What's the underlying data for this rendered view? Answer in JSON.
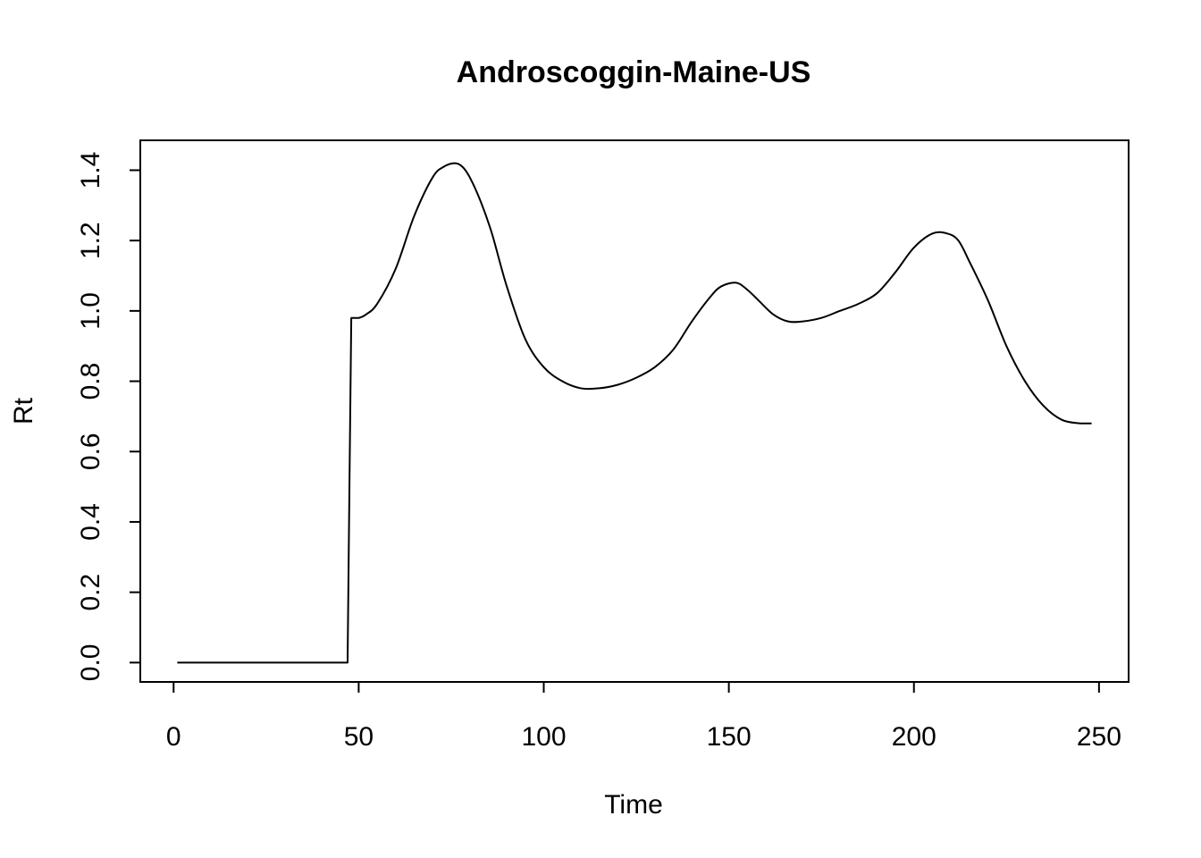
{
  "chart_data": {
    "type": "line",
    "title": "Androscoggin-Maine-US",
    "xlabel": "Time",
    "ylabel": "Rt",
    "xlim": [
      -9,
      258
    ],
    "ylim": [
      -0.055,
      1.485
    ],
    "xticks": [
      0,
      50,
      100,
      150,
      200,
      250
    ],
    "xtick_labels": [
      "0",
      "50",
      "100",
      "150",
      "200",
      "250"
    ],
    "yticks": [
      0.0,
      0.2,
      0.4,
      0.6,
      0.8,
      1.0,
      1.2,
      1.4
    ],
    "ytick_labels": [
      "0.0",
      "0.2",
      "0.4",
      "0.6",
      "0.8",
      "1.0",
      "1.2",
      "1.4"
    ],
    "grid": false,
    "legend": "none",
    "line_color": "#000000",
    "series": [
      {
        "x": [
          1,
          47,
          47.5,
          48,
          50,
          52,
          55,
          60,
          65,
          70,
          73,
          76,
          78,
          80,
          83,
          86,
          90,
          95,
          100,
          105,
          110,
          115,
          120,
          125,
          130,
          135,
          140,
          145,
          148,
          152,
          155,
          158,
          162,
          166,
          170,
          175,
          180,
          185,
          190,
          195,
          200,
          205,
          209,
          212,
          215,
          220,
          225,
          230,
          235,
          240,
          245,
          248
        ],
        "y": [
          0.0,
          0.0,
          0.5,
          0.98,
          0.98,
          0.99,
          1.02,
          1.12,
          1.27,
          1.38,
          1.41,
          1.42,
          1.41,
          1.38,
          1.31,
          1.22,
          1.07,
          0.92,
          0.84,
          0.8,
          0.78,
          0.78,
          0.79,
          0.81,
          0.84,
          0.89,
          0.97,
          1.04,
          1.07,
          1.08,
          1.06,
          1.03,
          0.99,
          0.97,
          0.97,
          0.98,
          1.0,
          1.02,
          1.05,
          1.11,
          1.18,
          1.22,
          1.22,
          1.2,
          1.14,
          1.03,
          0.9,
          0.8,
          0.73,
          0.69,
          0.68,
          0.68
        ]
      }
    ]
  }
}
